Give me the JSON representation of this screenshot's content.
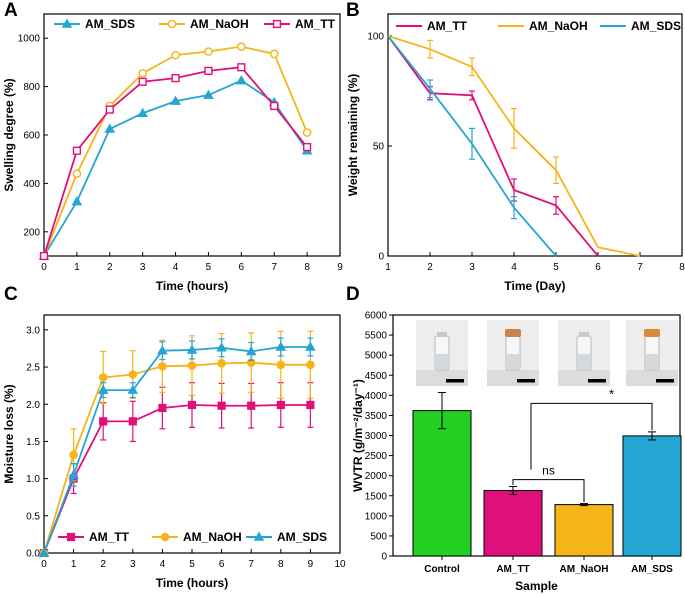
{
  "colors": {
    "tt": "#e0107a",
    "naoh": "#f5b418",
    "sds": "#25a5d4",
    "control": "#22cf22",
    "axis": "#000000"
  },
  "chart_data": [
    {
      "panel_label": "A",
      "type": "line",
      "xlabel": "Time (hours)",
      "ylabel": "Swelling degree (%)",
      "xlim": [
        0,
        9
      ],
      "ylim": [
        100,
        1100
      ],
      "xticks": [
        "0",
        "1",
        "2",
        "3",
        "4",
        "5",
        "6",
        "7",
        "8",
        "9"
      ],
      "yticks": [
        "200",
        "400",
        "600",
        "800",
        "1000"
      ],
      "legend": [
        "AM_SDS",
        "AM_NaOH",
        "AM_TT"
      ],
      "x": [
        0,
        1,
        2,
        3,
        4,
        5,
        6,
        7,
        8
      ],
      "series": [
        {
          "name": "AM_SDS",
          "color": "#25a5d4",
          "marker": "triangle",
          "values": [
            100,
            325,
            625,
            690,
            740,
            765,
            825,
            735,
            535
          ]
        },
        {
          "name": "AM_NaOH",
          "color": "#f5b418",
          "marker": "circle",
          "values": [
            100,
            440,
            720,
            855,
            930,
            945,
            965,
            935,
            610
          ]
        },
        {
          "name": "AM_TT",
          "color": "#e0107a",
          "marker": "square",
          "values": [
            100,
            535,
            705,
            820,
            835,
            865,
            880,
            720,
            550
          ]
        }
      ]
    },
    {
      "panel_label": "B",
      "type": "line",
      "xlabel": "Time (Day)",
      "ylabel": "Weight remaining (%)",
      "xlim": [
        1,
        8
      ],
      "ylim": [
        0,
        110
      ],
      "xticks": [
        "1",
        "2",
        "3",
        "4",
        "5",
        "6",
        "7",
        "8"
      ],
      "yticks": [
        "0",
        "50",
        "100"
      ],
      "legend": [
        "AM_TT",
        "AM_NaOH",
        "AM_SDS"
      ],
      "series": [
        {
          "name": "AM_TT",
          "color": "#e0107a",
          "x": [
            1,
            2,
            3,
            4,
            5,
            6
          ],
          "values": [
            100,
            74,
            73,
            30,
            23,
            0
          ],
          "errors": [
            0,
            3,
            2,
            5,
            4,
            0
          ]
        },
        {
          "name": "AM_NaOH",
          "color": "#f5b418",
          "x": [
            1,
            2,
            3,
            4,
            5,
            6,
            7
          ],
          "values": [
            100,
            94,
            86,
            58,
            39,
            4,
            0
          ],
          "errors": [
            0,
            4,
            4,
            9,
            6,
            0,
            0
          ]
        },
        {
          "name": "AM_SDS",
          "color": "#25a5d4",
          "x": [
            1,
            2,
            3,
            4,
            5
          ],
          "values": [
            100,
            76,
            51,
            22,
            0
          ],
          "errors": [
            0,
            4,
            7,
            5,
            0
          ]
        }
      ]
    },
    {
      "panel_label": "C",
      "type": "line",
      "xlabel": "Time (hours)",
      "ylabel": "Moisture loss (%)",
      "xlim": [
        0,
        10
      ],
      "ylim": [
        0,
        3.2
      ],
      "xticks": [
        "0",
        "1",
        "2",
        "3",
        "4",
        "5",
        "6",
        "7",
        "8",
        "9",
        "10"
      ],
      "yticks": [
        "0.0",
        "0.5",
        "1.0",
        "1.5",
        "2.0",
        "2.5",
        "3.0"
      ],
      "legend": [
        "AM_TT",
        "AM_NaOH",
        "AM_SDS"
      ],
      "x": [
        0,
        1,
        2,
        3,
        4,
        5,
        6,
        7,
        8,
        9
      ],
      "series": [
        {
          "name": "AM_TT",
          "color": "#e0107a",
          "marker": "square",
          "values": [
            0,
            1.0,
            1.77,
            1.77,
            1.95,
            1.99,
            1.98,
            1.98,
            1.99,
            1.99
          ],
          "errors": [
            0,
            0.2,
            0.25,
            0.27,
            0.28,
            0.3,
            0.3,
            0.3,
            0.3,
            0.3
          ]
        },
        {
          "name": "AM_NaOH",
          "color": "#f5b418",
          "marker": "circle",
          "values": [
            0,
            1.32,
            2.36,
            2.4,
            2.51,
            2.52,
            2.55,
            2.56,
            2.53,
            2.53
          ],
          "errors": [
            0,
            0.35,
            0.35,
            0.32,
            0.35,
            0.4,
            0.4,
            0.4,
            0.45,
            0.45
          ]
        },
        {
          "name": "AM_SDS",
          "color": "#25a5d4",
          "marker": "triangle",
          "values": [
            0,
            1.05,
            2.19,
            2.19,
            2.72,
            2.73,
            2.76,
            2.71,
            2.77,
            2.77
          ],
          "errors": [
            0,
            0.15,
            0.1,
            0.1,
            0.12,
            0.12,
            0.12,
            0.12,
            0.12,
            0.12
          ]
        }
      ]
    },
    {
      "panel_label": "D",
      "type": "bar",
      "xlabel": "Sample",
      "ylabel": "WVTR (g/m⁻²/day⁻¹)",
      "ylim": [
        0,
        6000
      ],
      "yticks": [
        "0",
        "500",
        "1000",
        "1500",
        "2000",
        "2500",
        "3000",
        "3500",
        "4000",
        "4500",
        "5000",
        "5500",
        "6000"
      ],
      "categories": [
        "Control",
        "AM_TT",
        "AM_NaOH",
        "AM_SDS"
      ],
      "values": [
        3620,
        1630,
        1280,
        2990
      ],
      "errors": [
        450,
        100,
        25,
        100
      ],
      "bar_colors": [
        "#22cf22",
        "#e0107a",
        "#f5b418",
        "#25a5d4"
      ],
      "annotations": [
        {
          "text": "ns",
          "between": [
            "AM_TT",
            "AM_NaOH"
          ]
        },
        {
          "text": "*",
          "between": [
            "AM_TT",
            "AM_SDS"
          ]
        }
      ]
    }
  ]
}
